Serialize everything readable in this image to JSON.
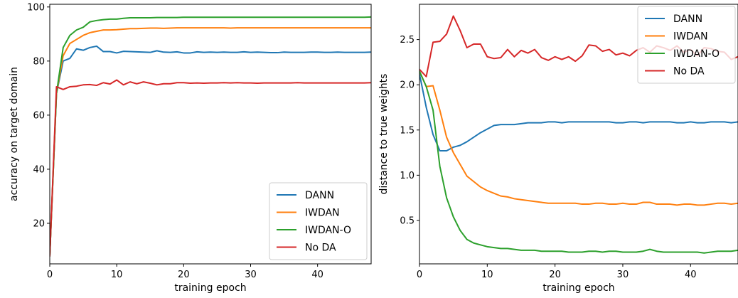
{
  "chart_data": [
    {
      "type": "line",
      "xlabel": "training epoch",
      "ylabel": "accuracy on target domain",
      "xlim": [
        0,
        48
      ],
      "ylim": [
        5,
        101
      ],
      "xticks": [
        0,
        10,
        20,
        30,
        40
      ],
      "yticks": [
        20,
        40,
        60,
        80,
        100
      ],
      "legend_position": "bottom-right",
      "grid": false,
      "series": [
        {
          "name": "DANN",
          "color": "#1f77b4",
          "x": [
            0,
            1,
            2,
            3,
            4,
            5,
            6,
            7,
            8,
            9,
            10,
            11,
            12,
            13,
            14,
            15,
            16,
            17,
            18,
            19,
            20,
            21,
            22,
            23,
            24,
            25,
            26,
            27,
            28,
            29,
            30,
            31,
            32,
            33,
            34,
            35,
            36,
            37,
            38,
            39,
            40,
            41,
            42,
            43,
            44,
            45,
            46,
            47,
            48
          ],
          "y": [
            8,
            68,
            80,
            81,
            84.5,
            84,
            85,
            85.5,
            83.5,
            83.5,
            83,
            83.6,
            83.5,
            83.4,
            83.3,
            83.2,
            83.8,
            83.3,
            83.2,
            83.4,
            83,
            83,
            83.4,
            83.2,
            83.3,
            83.2,
            83.3,
            83.2,
            83.2,
            83.4,
            83.2,
            83.3,
            83.2,
            83.1,
            83.1,
            83.3,
            83.2,
            83.2,
            83.2,
            83.3,
            83.3,
            83.2,
            83.2,
            83.3,
            83.2,
            83.2,
            83.2,
            83.2,
            83.3
          ]
        },
        {
          "name": "IWDAN",
          "color": "#ff7f0e",
          "x": [
            0,
            1,
            2,
            3,
            4,
            5,
            6,
            7,
            8,
            9,
            10,
            11,
            12,
            13,
            14,
            15,
            16,
            17,
            18,
            19,
            20,
            21,
            22,
            23,
            24,
            25,
            26,
            27,
            28,
            29,
            30,
            31,
            32,
            33,
            34,
            35,
            36,
            37,
            38,
            39,
            40,
            41,
            42,
            43,
            44,
            45,
            46,
            47,
            48
          ],
          "y": [
            8,
            68,
            82,
            86.5,
            88,
            89.5,
            90.5,
            91,
            91.5,
            91.5,
            91.6,
            91.8,
            92,
            92,
            92.1,
            92.2,
            92.2,
            92.1,
            92.2,
            92.3,
            92.3,
            92.3,
            92.3,
            92.3,
            92.3,
            92.3,
            92.3,
            92.2,
            92.3,
            92.3,
            92.3,
            92.3,
            92.3,
            92.3,
            92.3,
            92.3,
            92.3,
            92.3,
            92.3,
            92.3,
            92.3,
            92.3,
            92.3,
            92.3,
            92.3,
            92.3,
            92.3,
            92.3,
            92.3
          ]
        },
        {
          "name": "IWDAN-O",
          "color": "#2ca02c",
          "x": [
            0,
            1,
            2,
            3,
            4,
            5,
            6,
            7,
            8,
            9,
            10,
            11,
            12,
            13,
            14,
            15,
            16,
            17,
            18,
            19,
            20,
            21,
            22,
            23,
            24,
            25,
            26,
            27,
            28,
            29,
            30,
            31,
            32,
            33,
            34,
            35,
            36,
            37,
            38,
            39,
            40,
            41,
            42,
            43,
            44,
            45,
            46,
            47,
            48
          ],
          "y": [
            8,
            68,
            85,
            89.5,
            91.5,
            92.5,
            94.5,
            95,
            95.3,
            95.5,
            95.5,
            95.8,
            96,
            96,
            96,
            96,
            96.1,
            96.1,
            96.1,
            96.1,
            96.2,
            96.2,
            96.2,
            96.2,
            96.2,
            96.2,
            96.2,
            96.2,
            96.2,
            96.2,
            96.2,
            96.2,
            96.2,
            96.2,
            96.2,
            96.2,
            96.2,
            96.2,
            96.2,
            96.2,
            96.2,
            96.2,
            96.2,
            96.2,
            96.2,
            96.2,
            96.2,
            96.2,
            96.3
          ]
        },
        {
          "name": "No DA",
          "color": "#d62728",
          "x": [
            0,
            1,
            2,
            3,
            4,
            5,
            6,
            7,
            8,
            9,
            10,
            11,
            12,
            13,
            14,
            15,
            16,
            17,
            18,
            19,
            20,
            21,
            22,
            23,
            24,
            25,
            26,
            27,
            28,
            29,
            30,
            31,
            32,
            33,
            34,
            35,
            36,
            37,
            38,
            39,
            40,
            41,
            42,
            43,
            44,
            45,
            46,
            47,
            48
          ],
          "y": [
            8,
            70.5,
            69.5,
            70.5,
            70.7,
            71.2,
            71.3,
            71,
            72,
            71.5,
            73,
            71.2,
            72.3,
            71.6,
            72.3,
            71.8,
            71.2,
            71.6,
            71.6,
            72,
            72,
            71.8,
            71.9,
            71.8,
            71.9,
            71.9,
            72,
            71.9,
            72,
            71.9,
            71.9,
            71.8,
            71.9,
            71.9,
            71.9,
            71.9,
            71.9,
            72,
            71.9,
            71.9,
            71.9,
            71.9,
            71.9,
            71.9,
            71.9,
            71.9,
            71.9,
            71.9,
            72
          ]
        }
      ]
    },
    {
      "type": "line",
      "xlabel": "training epoch",
      "ylabel": "distance to true weights",
      "xlim": [
        0,
        47
      ],
      "ylim": [
        0.02,
        2.89
      ],
      "xticks": [
        0,
        10,
        20,
        30,
        40
      ],
      "yticks": [
        0.5,
        1.0,
        1.5,
        2.0,
        2.5
      ],
      "ytick_labels": [
        "0.5",
        "1.0",
        "1.5",
        "2.0",
        "2.5"
      ],
      "legend_position": "top-right",
      "grid": false,
      "series": [
        {
          "name": "DANN",
          "color": "#1f77b4",
          "x": [
            0,
            1,
            2,
            3,
            4,
            5,
            6,
            7,
            8,
            9,
            10,
            11,
            12,
            13,
            14,
            15,
            16,
            17,
            18,
            19,
            20,
            21,
            22,
            23,
            24,
            25,
            26,
            27,
            28,
            29,
            30,
            31,
            32,
            33,
            34,
            35,
            36,
            37,
            38,
            39,
            40,
            41,
            42,
            43,
            44,
            45,
            46,
            47
          ],
          "y": [
            2.12,
            1.75,
            1.45,
            1.27,
            1.27,
            1.31,
            1.33,
            1.37,
            1.42,
            1.47,
            1.51,
            1.55,
            1.56,
            1.56,
            1.56,
            1.57,
            1.58,
            1.58,
            1.58,
            1.59,
            1.59,
            1.58,
            1.59,
            1.59,
            1.59,
            1.59,
            1.59,
            1.59,
            1.59,
            1.58,
            1.58,
            1.59,
            1.59,
            1.58,
            1.59,
            1.59,
            1.59,
            1.59,
            1.58,
            1.58,
            1.59,
            1.58,
            1.58,
            1.59,
            1.59,
            1.59,
            1.58,
            1.59
          ]
        },
        {
          "name": "IWDAN",
          "color": "#ff7f0e",
          "x": [
            0,
            1,
            2,
            3,
            4,
            5,
            6,
            7,
            8,
            9,
            10,
            11,
            12,
            13,
            14,
            15,
            16,
            17,
            18,
            19,
            20,
            21,
            22,
            23,
            24,
            25,
            26,
            27,
            28,
            29,
            30,
            31,
            32,
            33,
            34,
            35,
            36,
            37,
            38,
            39,
            40,
            41,
            42,
            43,
            44,
            45,
            46,
            47
          ],
          "y": [
            2.15,
            1.98,
            1.99,
            1.72,
            1.42,
            1.25,
            1.12,
            0.99,
            0.93,
            0.87,
            0.83,
            0.8,
            0.77,
            0.76,
            0.74,
            0.73,
            0.72,
            0.71,
            0.7,
            0.69,
            0.69,
            0.69,
            0.69,
            0.69,
            0.68,
            0.68,
            0.69,
            0.69,
            0.68,
            0.68,
            0.69,
            0.68,
            0.68,
            0.7,
            0.7,
            0.68,
            0.68,
            0.68,
            0.67,
            0.68,
            0.68,
            0.67,
            0.67,
            0.68,
            0.69,
            0.69,
            0.68,
            0.69
          ]
        },
        {
          "name": "IWDAN-O",
          "color": "#2ca02c",
          "x": [
            0,
            1,
            2,
            3,
            4,
            5,
            6,
            7,
            8,
            9,
            10,
            11,
            12,
            13,
            14,
            15,
            16,
            17,
            18,
            19,
            20,
            21,
            22,
            23,
            24,
            25,
            26,
            27,
            28,
            29,
            30,
            31,
            32,
            33,
            34,
            35,
            36,
            37,
            38,
            39,
            40,
            41,
            42,
            43,
            44,
            45,
            46,
            47
          ],
          "y": [
            2.15,
            1.98,
            1.72,
            1.1,
            0.75,
            0.54,
            0.39,
            0.29,
            0.25,
            0.23,
            0.21,
            0.2,
            0.19,
            0.19,
            0.18,
            0.17,
            0.17,
            0.17,
            0.16,
            0.16,
            0.16,
            0.16,
            0.15,
            0.15,
            0.15,
            0.16,
            0.16,
            0.15,
            0.16,
            0.16,
            0.15,
            0.15,
            0.15,
            0.16,
            0.18,
            0.16,
            0.15,
            0.15,
            0.15,
            0.15,
            0.15,
            0.15,
            0.14,
            0.15,
            0.16,
            0.16,
            0.16,
            0.17
          ]
        },
        {
          "name": "No DA",
          "color": "#d62728",
          "x": [
            0,
            1,
            2,
            3,
            4,
            5,
            6,
            7,
            8,
            9,
            10,
            11,
            12,
            13,
            14,
            15,
            16,
            17,
            18,
            19,
            20,
            21,
            22,
            23,
            24,
            25,
            26,
            27,
            28,
            29,
            30,
            31,
            32,
            33,
            34,
            35,
            36,
            37,
            38,
            39,
            40,
            41,
            42,
            43,
            44,
            45,
            46,
            47
          ],
          "y": [
            2.17,
            2.09,
            2.47,
            2.48,
            2.56,
            2.76,
            2.6,
            2.41,
            2.45,
            2.45,
            2.31,
            2.29,
            2.3,
            2.39,
            2.31,
            2.38,
            2.35,
            2.39,
            2.3,
            2.27,
            2.31,
            2.28,
            2.31,
            2.26,
            2.32,
            2.44,
            2.43,
            2.37,
            2.39,
            2.33,
            2.35,
            2.32,
            2.38,
            2.41,
            2.36,
            2.43,
            2.41,
            2.38,
            2.43,
            2.36,
            2.39,
            2.32,
            2.41,
            2.4,
            2.37,
            2.36,
            2.28,
            2.31
          ]
        }
      ]
    }
  ]
}
